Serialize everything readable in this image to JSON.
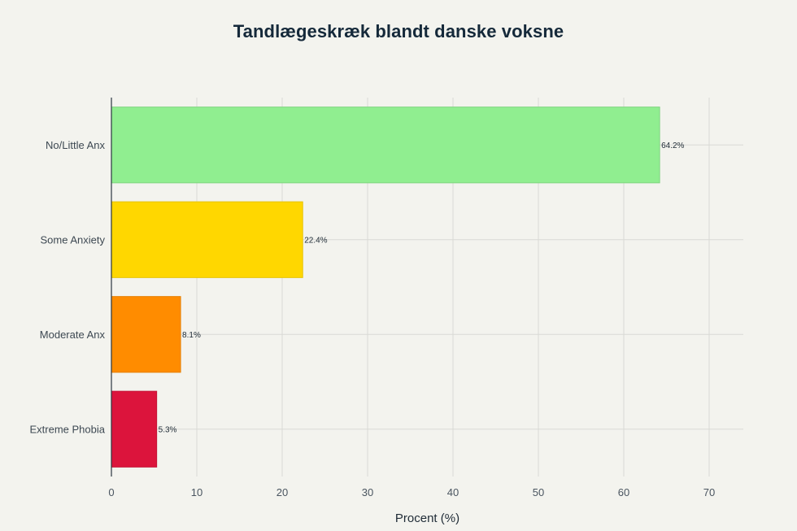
{
  "chart_data": {
    "type": "bar",
    "orientation": "horizontal",
    "title": "Tandlægeskræk blandt danske voksne",
    "xlabel": "Procent (%)",
    "ylabel": "",
    "xlim": [
      0,
      74
    ],
    "x_ticks": [
      0,
      10,
      20,
      30,
      40,
      50,
      60,
      70
    ],
    "grid": true,
    "legend": "none",
    "categories": [
      "No/Little Anx",
      "Some Anxiety",
      "Moderate Anx",
      "Extreme Phobia"
    ],
    "values": [
      64.2,
      22.4,
      8.1,
      5.3
    ],
    "data_labels": [
      "64.2%",
      "22.4%",
      "8.1%",
      "5.3%"
    ],
    "colors": [
      "#90ee90",
      "#ffd700",
      "#ff8c00",
      "#dc143c"
    ],
    "border_colors": [
      "#7fd47f",
      "#e6c200",
      "#e67e00",
      "#c41236"
    ]
  }
}
